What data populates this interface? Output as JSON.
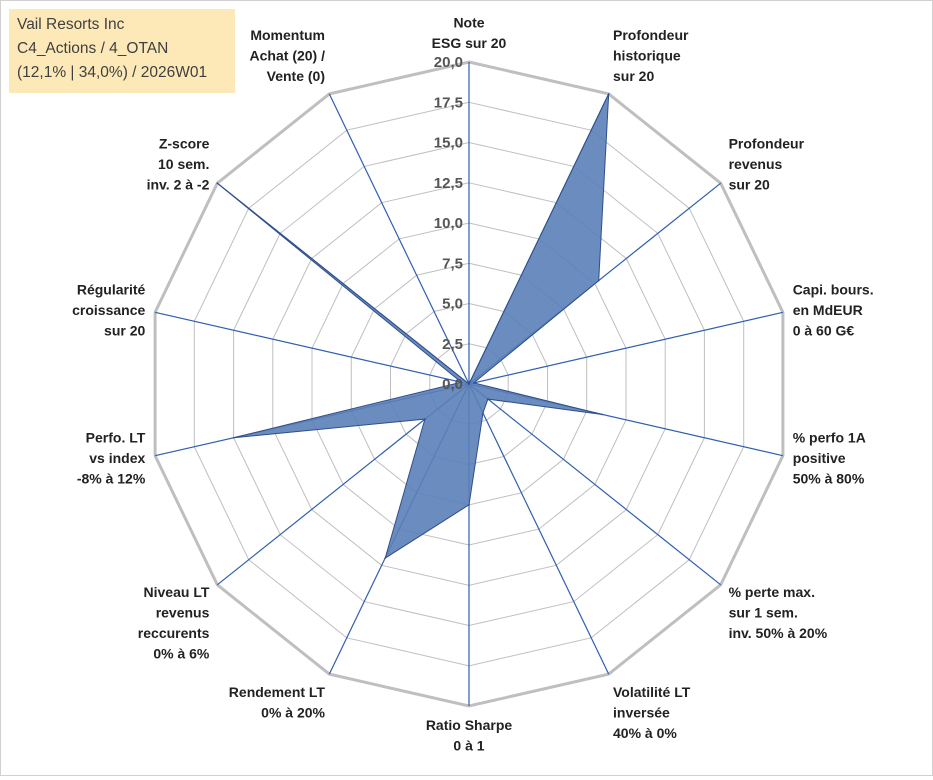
{
  "info": {
    "company": "Vail Resorts Inc",
    "portfolio": "C4_Actions / 4_OTAN",
    "params": "(12,1% | 34,0%) / 2026W01"
  },
  "colors": {
    "grid": "#bfbfbf",
    "spoke": "#2f5fb0",
    "fill": "#5b7fb8",
    "stroke": "#2f4f8a",
    "tick_text": "#555555",
    "label_text": "#222222",
    "info_bg": "#fde9b8"
  },
  "chart_data": {
    "type": "radar",
    "rmax": 20,
    "tick_step": 2.5,
    "tick_labels": [
      "0,0",
      "2,5",
      "5,0",
      "7,5",
      "10,0",
      "12,5",
      "15,0",
      "17,5",
      "20,0"
    ],
    "axes": [
      {
        "label": [
          "Note",
          "ESG sur 20"
        ],
        "value": 0
      },
      {
        "label": [
          "Profondeur",
          "historique",
          "sur 20"
        ],
        "value": 20
      },
      {
        "label": [
          "Profondeur",
          "revenus",
          "sur 20"
        ],
        "value": 10.3
      },
      {
        "label": [
          "Capi. bours.",
          "en MdEUR",
          "0 à 60 G€"
        ],
        "value": 0.3
      },
      {
        "label": [
          "% perfo 1A",
          "positive",
          "50% à 80%"
        ],
        "value": 8.5
      },
      {
        "label": [
          "% perte max.",
          "sur 1 sem.",
          "inv. 50% à 20%"
        ],
        "value": 1.5
      },
      {
        "label": [
          "Volatilité LT",
          "inversée",
          "40% à 0%"
        ],
        "value": 2
      },
      {
        "label": [
          "Ratio Sharpe",
          "0 à 1"
        ],
        "value": 7.5
      },
      {
        "label": [
          "Rendement LT",
          "0% à 20%"
        ],
        "value": 12
      },
      {
        "label": [
          "Niveau LT",
          "revenus",
          "reccurents",
          "0% à 6%"
        ],
        "value": 3.5
      },
      {
        "label": [
          "Perfo. LT",
          "vs index",
          "-8% à 12%"
        ],
        "value": 15
      },
      {
        "label": [
          "Régularité",
          "croissance",
          "sur 20"
        ],
        "value": 0.5
      },
      {
        "label": [
          "Z-score",
          "10 sem.",
          "inv. 2 à -2"
        ],
        "value": 20
      },
      {
        "label": [
          "Momentum",
          "Achat (20) /",
          "Vente (0)"
        ],
        "value": 0
      }
    ]
  }
}
